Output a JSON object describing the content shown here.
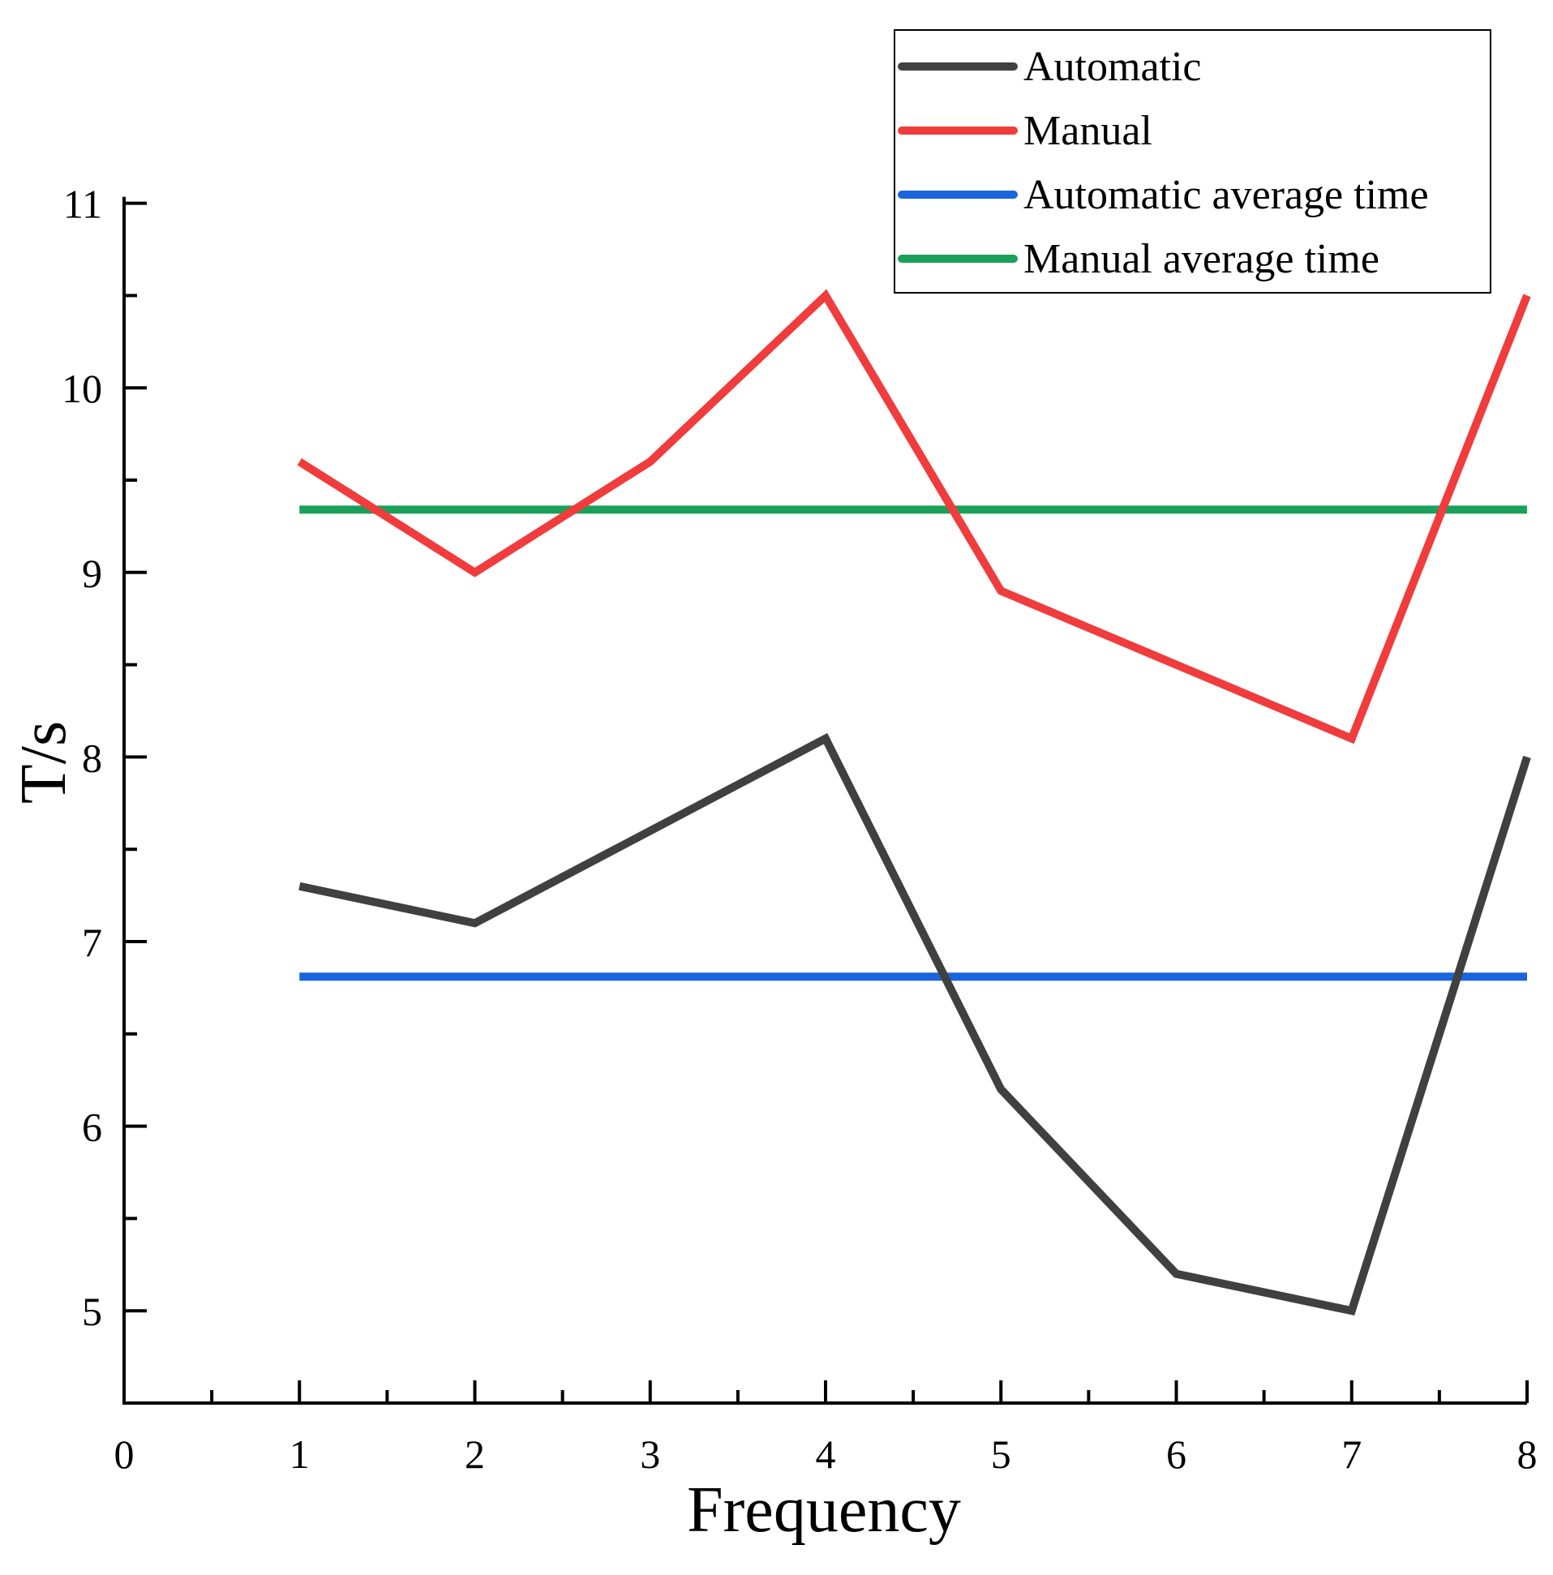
{
  "chart_data": {
    "type": "line",
    "title": "",
    "xlabel": "Frequency",
    "ylabel": "T/s",
    "xlim": [
      0,
      8
    ],
    "ylim": [
      4.5,
      11
    ],
    "xticks": [
      "0",
      "1",
      "2",
      "3",
      "4",
      "5",
      "6",
      "7",
      "8"
    ],
    "yticks": [
      "5",
      "6",
      "7",
      "8",
      "9",
      "10",
      "11"
    ],
    "grid": false,
    "legend_position": "top-right",
    "series": [
      {
        "name": "Automatic",
        "color": "#404040",
        "x": [
          1,
          2,
          3,
          4,
          5,
          6,
          7,
          8
        ],
        "values": [
          7.3,
          7.1,
          7.6,
          8.1,
          6.2,
          5.2,
          5.0,
          8.0
        ]
      },
      {
        "name": "Manual",
        "color": "#f03c3c",
        "x": [
          1,
          2,
          3,
          4,
          5,
          6,
          7,
          8
        ],
        "values": [
          9.6,
          9.0,
          9.6,
          10.5,
          8.9,
          8.5,
          8.1,
          10.5
        ]
      },
      {
        "name": "Automatic average time",
        "color": "#1a64dc",
        "x": [
          1,
          8
        ],
        "values": [
          6.81,
          6.81
        ]
      },
      {
        "name": "Manual average time",
        "color": "#1aa05a",
        "x": [
          1,
          8
        ],
        "values": [
          9.34,
          9.34
        ]
      }
    ]
  }
}
